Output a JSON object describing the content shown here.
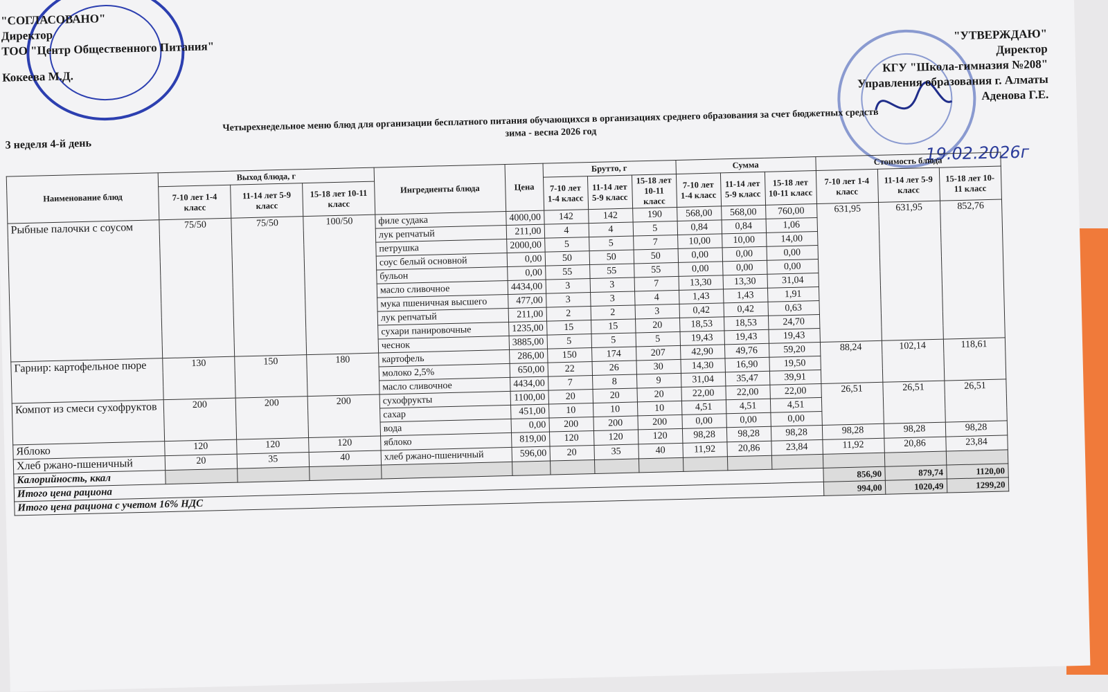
{
  "agreed": {
    "lines": [
      "\"СОГЛАСОВАНО\"",
      "Директор",
      "ТОО \"Центр Общественного Питания\"",
      "Кокеева М.Д."
    ],
    "stamp_text": "Центр Общественного Питания"
  },
  "approve": {
    "lines": [
      "\"УТВЕРЖДАЮ\"",
      "Директор",
      "КГУ \"Школа-гимназия №208\"",
      "Управления образования г. Алматы",
      "Аденова Г.Е."
    ],
    "date": "19.02.2026г"
  },
  "title": "Четырехнедельное меню блюд для организации бесплатного питания обучающихся в организациях среднего образования за счет бюджетных средств",
  "subtitle": "зима - весна 2026 год",
  "week": "3 неделя 4-й день",
  "headers": {
    "dish": "Наименование блюд",
    "yield": "Выход блюда, г",
    "ingredients": "Ингредиенты блюда",
    "price": "Цена",
    "brutto": "Брутто, г",
    "sum": "Сумма",
    "cost": "Стоимость блюда",
    "groups": [
      "7-10 лет 1-4 класс",
      "11-14 лет 5-9 класс",
      "15-18 лет 10-11 класс"
    ]
  },
  "dishes": [
    {
      "name": "Рыбные палочки с соусом",
      "yield": [
        "75/50",
        "75/50",
        "100/50"
      ],
      "cost": [
        "631,95",
        "631,95",
        "852,76"
      ],
      "items": [
        {
          "name": "филе судака",
          "price": "4000,00",
          "brutto": [
            "142",
            "142",
            "190"
          ],
          "sum": [
            "568,00",
            "568,00",
            "760,00"
          ]
        },
        {
          "name": "лук репчатый",
          "price": "211,00",
          "brutto": [
            "4",
            "4",
            "5"
          ],
          "sum": [
            "0,84",
            "0,84",
            "1,06"
          ]
        },
        {
          "name": "петрушка",
          "price": "2000,00",
          "brutto": [
            "5",
            "5",
            "7"
          ],
          "sum": [
            "10,00",
            "10,00",
            "14,00"
          ]
        },
        {
          "name": "соус белый основной",
          "price": "0,00",
          "brutto": [
            "50",
            "50",
            "50"
          ],
          "sum": [
            "0,00",
            "0,00",
            "0,00"
          ]
        },
        {
          "name": "бульон",
          "price": "0,00",
          "brutto": [
            "55",
            "55",
            "55"
          ],
          "sum": [
            "0,00",
            "0,00",
            "0,00"
          ]
        },
        {
          "name": "масло сливочное",
          "price": "4434,00",
          "brutto": [
            "3",
            "3",
            "7"
          ],
          "sum": [
            "13,30",
            "13,30",
            "31,04"
          ]
        },
        {
          "name": "мука пшеничная высшего",
          "price": "477,00",
          "brutto": [
            "3",
            "3",
            "4"
          ],
          "sum": [
            "1,43",
            "1,43",
            "1,91"
          ]
        },
        {
          "name": "лук репчатый",
          "price": "211,00",
          "brutto": [
            "2",
            "2",
            "3"
          ],
          "sum": [
            "0,42",
            "0,42",
            "0,63"
          ]
        },
        {
          "name": "сухари панировочные",
          "price": "1235,00",
          "brutto": [
            "15",
            "15",
            "20"
          ],
          "sum": [
            "18,53",
            "18,53",
            "24,70"
          ]
        },
        {
          "name": "чеснок",
          "price": "3885,00",
          "brutto": [
            "5",
            "5",
            "5"
          ],
          "sum": [
            "19,43",
            "19,43",
            "19,43"
          ]
        }
      ]
    },
    {
      "name": "Гарнир: картофельное пюре",
      "yield": [
        "130",
        "150",
        "180"
      ],
      "cost": [
        "88,24",
        "102,14",
        "118,61"
      ],
      "items": [
        {
          "name": "картофель",
          "price": "286,00",
          "brutto": [
            "150",
            "174",
            "207"
          ],
          "sum": [
            "42,90",
            "49,76",
            "59,20"
          ]
        },
        {
          "name": "молоко 2,5%",
          "price": "650,00",
          "brutto": [
            "22",
            "26",
            "30"
          ],
          "sum": [
            "14,30",
            "16,90",
            "19,50"
          ]
        },
        {
          "name": "масло сливочное",
          "price": "4434,00",
          "brutto": [
            "7",
            "8",
            "9"
          ],
          "sum": [
            "31,04",
            "35,47",
            "39,91"
          ]
        }
      ]
    },
    {
      "name": "Компот из смеси сухофруктов",
      "yield": [
        "200",
        "200",
        "200"
      ],
      "cost": [
        "26,51",
        "26,51",
        "26,51"
      ],
      "items": [
        {
          "name": "сухофрукты",
          "price": "1100,00",
          "brutto": [
            "20",
            "20",
            "20"
          ],
          "sum": [
            "22,00",
            "22,00",
            "22,00"
          ]
        },
        {
          "name": "сахар",
          "price": "451,00",
          "brutto": [
            "10",
            "10",
            "10"
          ],
          "sum": [
            "4,51",
            "4,51",
            "4,51"
          ]
        },
        {
          "name": "вода",
          "price": "0,00",
          "brutto": [
            "200",
            "200",
            "200"
          ],
          "sum": [
            "0,00",
            "0,00",
            "0,00"
          ]
        }
      ]
    },
    {
      "name": "Яблоко",
      "yield": [
        "120",
        "120",
        "120"
      ],
      "cost": [
        "98,28",
        "98,28",
        "98,28"
      ],
      "items": [
        {
          "name": "яблоко",
          "price": "819,00",
          "brutto": [
            "120",
            "120",
            "120"
          ],
          "sum": [
            "98,28",
            "98,28",
            "98,28"
          ]
        }
      ]
    },
    {
      "name": "Хлеб ржано-пшеничный",
      "yield": [
        "20",
        "35",
        "40"
      ],
      "cost": [
        "11,92",
        "20,86",
        "23,84"
      ],
      "items": [
        {
          "name": "хлеб ржано-пшеничный",
          "price": "596,00",
          "brutto": [
            "20",
            "35",
            "40"
          ],
          "sum": [
            "11,92",
            "20,86",
            "23,84"
          ]
        }
      ]
    }
  ],
  "footer": {
    "calories": "Калорийность, ккал",
    "total": "Итого цена рациона",
    "total_values": [
      "856,90",
      "879,74",
      "1120,00"
    ],
    "total_vat": "Итого цена рациона с учетом 16% НДС",
    "total_vat_values": [
      "994,00",
      "1020,49",
      "1299,20"
    ]
  }
}
